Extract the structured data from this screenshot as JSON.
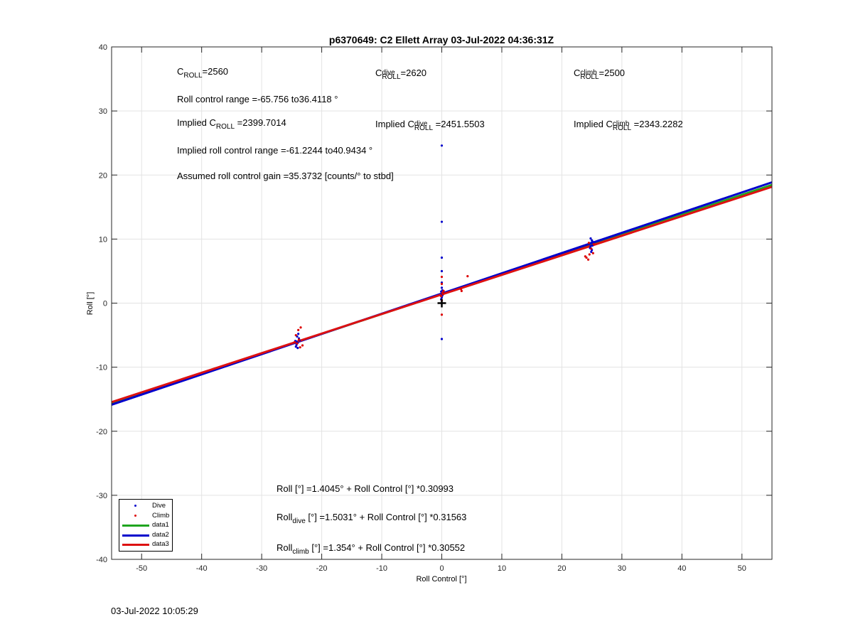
{
  "chart_data": {
    "type": "scatter",
    "title": "p6370649: C2 Ellett Array 03-Jul-2022 04:36:31Z",
    "xlabel": "Roll Control [°]",
    "ylabel": "Roll [°]",
    "xlim": [
      -55,
      55
    ],
    "ylim": [
      -40,
      40
    ],
    "xticks": [
      -50,
      -40,
      -30,
      -20,
      -10,
      0,
      10,
      20,
      30,
      40,
      50
    ],
    "yticks": [
      -40,
      -30,
      -20,
      -10,
      0,
      10,
      20,
      30,
      40
    ],
    "grid": true,
    "legend_position": "bottom-left",
    "series": [
      {
        "name": "Dive",
        "kind": "points",
        "color": "#0000cc",
        "points": [
          [
            -24.2,
            -6.5
          ],
          [
            -24.0,
            -6.2
          ],
          [
            -24.4,
            -5.9
          ],
          [
            -23.8,
            -5.5
          ],
          [
            -24.1,
            -5.2
          ],
          [
            -23.9,
            -4.8
          ],
          [
            -24.3,
            -6.8
          ],
          [
            -24.0,
            -7.0
          ],
          [
            -24.2,
            -6.0
          ],
          [
            -23.7,
            -5.8
          ],
          [
            0.0,
            24.6
          ],
          [
            0.0,
            12.7
          ],
          [
            0.0,
            7.1
          ],
          [
            0.0,
            5.0
          ],
          [
            0.0,
            3.2
          ],
          [
            0.0,
            2.4
          ],
          [
            0.1,
            2.0
          ],
          [
            -0.1,
            1.8
          ],
          [
            0.0,
            1.5
          ],
          [
            0.1,
            1.2
          ],
          [
            0.0,
            0.9
          ],
          [
            -0.1,
            0.6
          ],
          [
            0.0,
            -5.6
          ],
          [
            24.8,
            10.1
          ],
          [
            25.0,
            9.8
          ],
          [
            24.9,
            9.4
          ],
          [
            25.1,
            9.0
          ],
          [
            24.7,
            8.6
          ],
          [
            25.0,
            8.3
          ],
          [
            24.9,
            8.0
          ],
          [
            25.1,
            9.6
          ],
          [
            24.8,
            8.9
          ]
        ]
      },
      {
        "name": "Climb",
        "kind": "points",
        "color": "#dd0000",
        "points": [
          [
            -23.5,
            -3.8
          ],
          [
            -23.9,
            -4.2
          ],
          [
            -24.3,
            -5.0
          ],
          [
            -23.2,
            -6.6
          ],
          [
            -23.6,
            -6.9
          ],
          [
            -24.1,
            -6.3
          ],
          [
            -23.8,
            -5.7
          ],
          [
            -24.5,
            -6.1
          ],
          [
            0.0,
            4.1
          ],
          [
            0.0,
            3.0
          ],
          [
            0.0,
            -1.8
          ],
          [
            0.1,
            1.6
          ],
          [
            0.2,
            1.4
          ],
          [
            -0.1,
            1.1
          ],
          [
            0.3,
            1.9
          ],
          [
            3.2,
            2.2
          ],
          [
            3.3,
            1.9
          ],
          [
            4.3,
            4.2
          ],
          [
            0.0,
            0.4
          ],
          [
            24.1,
            7.1
          ],
          [
            24.4,
            6.8
          ],
          [
            24.6,
            7.6
          ],
          [
            25.2,
            7.8
          ],
          [
            24.9,
            8.5
          ],
          [
            25.3,
            9.2
          ],
          [
            24.5,
            9.4
          ],
          [
            23.9,
            7.3
          ]
        ]
      },
      {
        "name": "data1",
        "kind": "line",
        "color": "#1fa51f",
        "intercept": 1.4045,
        "slope": 0.30993
      },
      {
        "name": "data2",
        "kind": "line",
        "color": "#0000cc",
        "intercept": 1.5031,
        "slope": 0.31563
      },
      {
        "name": "data3",
        "kind": "line",
        "color": "#dd1111",
        "intercept": 1.354,
        "slope": 0.30552
      }
    ],
    "zero_marker": {
      "x": 0,
      "y": 0,
      "symbol": "+"
    }
  },
  "annotations": {
    "c_roll": {
      "base": "C",
      "sub": "ROLL",
      "value": "=2560"
    },
    "c_roll_dive": {
      "base": "C",
      "sub": "ROLL",
      "sup": "dive",
      "value": "=2620"
    },
    "c_roll_climb": {
      "base": "C",
      "sub": "ROLL",
      "sup": "climb",
      "value": "=2500"
    },
    "roll_control_range": "Roll control range =-65.756 to36.4118 °",
    "implied_c_roll": {
      "prefix": "Implied C",
      "sub": "ROLL",
      "value": " =2399.7014"
    },
    "implied_c_roll_dive": {
      "prefix": "Implied C",
      "sub": "ROLL",
      "sup": "dive",
      "value": " =2451.5503"
    },
    "implied_c_roll_climb": {
      "prefix": "Implied C",
      "sub": "ROLL",
      "sup": "climb",
      "value": " =2343.2282"
    },
    "implied_range": "Implied roll control range =-61.2244 to40.9434 °",
    "gain": "Assumed roll control gain =35.3732 [counts/° to stbd]",
    "fit_all": "Roll [°] =1.4045° + Roll Control [°] *0.30993",
    "fit_dive": {
      "prefix": "Roll",
      "sub": "dive",
      "rest": " [°] =1.5031° + Roll Control [°] *0.31563"
    },
    "fit_climb": {
      "prefix": "Roll",
      "sub": "climb",
      "rest": " [°] =1.354° + Roll Control [°] *0.30552"
    }
  },
  "footer_timestamp": "03-Jul-2022 10:05:29"
}
